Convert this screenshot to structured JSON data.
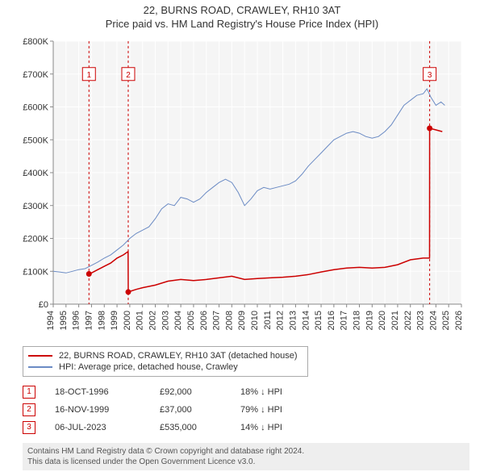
{
  "title": "22, BURNS ROAD, CRAWLEY, RH10 3AT",
  "subtitle": "Price paid vs. HM Land Registry's House Price Index (HPI)",
  "chart": {
    "type": "line",
    "plot_bg": "#f5f5f5",
    "grid_color": "#ffffff",
    "axis_color": "#888888",
    "tick_color": "#333333",
    "label_fontsize": 11,
    "x": {
      "min": 1994,
      "max": 2026,
      "ticks": [
        1994,
        1995,
        1996,
        1997,
        1998,
        1999,
        2000,
        2001,
        2002,
        2003,
        2004,
        2005,
        2006,
        2007,
        2008,
        2009,
        2010,
        2011,
        2012,
        2013,
        2014,
        2015,
        2016,
        2017,
        2018,
        2019,
        2020,
        2021,
        2022,
        2023,
        2024,
        2025,
        2026
      ]
    },
    "y": {
      "min": 0,
      "max": 800000,
      "tick_step": 100000,
      "labels": [
        "£0",
        "£100K",
        "£200K",
        "£300K",
        "£400K",
        "£500K",
        "£600K",
        "£700K",
        "£800K"
      ]
    },
    "series": [
      {
        "name": "property",
        "label": "22, BURNS ROAD, CRAWLEY, RH10 3AT (detached house)",
        "color": "#cc0000",
        "width": 1.5,
        "points": [
          [
            1996.8,
            92000
          ],
          [
            1996.85,
            92000
          ],
          [
            1997.0,
            95000
          ],
          [
            1997.5,
            105000
          ],
          [
            1998.0,
            115000
          ],
          [
            1998.5,
            125000
          ],
          [
            1999.0,
            140000
          ],
          [
            1999.5,
            150000
          ],
          [
            1999.87,
            160000
          ],
          [
            1999.88,
            37000
          ],
          [
            2000.5,
            45000
          ],
          [
            2001.0,
            50000
          ],
          [
            2002.0,
            58000
          ],
          [
            2003.0,
            70000
          ],
          [
            2004.0,
            75000
          ],
          [
            2005.0,
            72000
          ],
          [
            2006.0,
            75000
          ],
          [
            2007.0,
            80000
          ],
          [
            2008.0,
            85000
          ],
          [
            2009.0,
            75000
          ],
          [
            2010.0,
            78000
          ],
          [
            2011.0,
            80000
          ],
          [
            2012.0,
            82000
          ],
          [
            2013.0,
            85000
          ],
          [
            2014.0,
            90000
          ],
          [
            2015.0,
            98000
          ],
          [
            2016.0,
            105000
          ],
          [
            2017.0,
            110000
          ],
          [
            2018.0,
            112000
          ],
          [
            2019.0,
            110000
          ],
          [
            2020.0,
            112000
          ],
          [
            2021.0,
            120000
          ],
          [
            2022.0,
            135000
          ],
          [
            2023.0,
            140000
          ],
          [
            2023.5,
            140000
          ],
          [
            2023.51,
            535000
          ],
          [
            2023.52,
            535000
          ],
          [
            2024.0,
            530000
          ],
          [
            2024.5,
            525000
          ]
        ]
      },
      {
        "name": "hpi",
        "label": "HPI: Average price, detached house, Crawley",
        "color": "#6b8bc4",
        "width": 1,
        "points": [
          [
            1994.0,
            100000
          ],
          [
            1994.5,
            98000
          ],
          [
            1995.0,
            95000
          ],
          [
            1995.5,
            100000
          ],
          [
            1996.0,
            105000
          ],
          [
            1996.5,
            108000
          ],
          [
            1997.0,
            118000
          ],
          [
            1997.5,
            128000
          ],
          [
            1998.0,
            140000
          ],
          [
            1998.5,
            150000
          ],
          [
            1999.0,
            165000
          ],
          [
            1999.5,
            180000
          ],
          [
            2000.0,
            200000
          ],
          [
            2000.5,
            215000
          ],
          [
            2001.0,
            225000
          ],
          [
            2001.5,
            235000
          ],
          [
            2002.0,
            260000
          ],
          [
            2002.5,
            290000
          ],
          [
            2003.0,
            305000
          ],
          [
            2003.5,
            300000
          ],
          [
            2004.0,
            325000
          ],
          [
            2004.5,
            320000
          ],
          [
            2005.0,
            310000
          ],
          [
            2005.5,
            320000
          ],
          [
            2006.0,
            340000
          ],
          [
            2006.5,
            355000
          ],
          [
            2007.0,
            370000
          ],
          [
            2007.5,
            380000
          ],
          [
            2008.0,
            370000
          ],
          [
            2008.5,
            340000
          ],
          [
            2009.0,
            300000
          ],
          [
            2009.5,
            320000
          ],
          [
            2010.0,
            345000
          ],
          [
            2010.5,
            355000
          ],
          [
            2011.0,
            350000
          ],
          [
            2011.5,
            355000
          ],
          [
            2012.0,
            360000
          ],
          [
            2012.5,
            365000
          ],
          [
            2013.0,
            375000
          ],
          [
            2013.5,
            395000
          ],
          [
            2014.0,
            420000
          ],
          [
            2014.5,
            440000
          ],
          [
            2015.0,
            460000
          ],
          [
            2015.5,
            480000
          ],
          [
            2016.0,
            500000
          ],
          [
            2016.5,
            510000
          ],
          [
            2017.0,
            520000
          ],
          [
            2017.5,
            525000
          ],
          [
            2018.0,
            520000
          ],
          [
            2018.5,
            510000
          ],
          [
            2019.0,
            505000
          ],
          [
            2019.5,
            510000
          ],
          [
            2020.0,
            525000
          ],
          [
            2020.5,
            545000
          ],
          [
            2021.0,
            575000
          ],
          [
            2021.5,
            605000
          ],
          [
            2022.0,
            620000
          ],
          [
            2022.5,
            635000
          ],
          [
            2023.0,
            640000
          ],
          [
            2023.3,
            655000
          ],
          [
            2023.6,
            630000
          ],
          [
            2024.0,
            605000
          ],
          [
            2024.4,
            615000
          ],
          [
            2024.7,
            605000
          ]
        ]
      }
    ],
    "markers": [
      {
        "n": "1",
        "x": 1996.8,
        "y": 92000,
        "label_y": 700000
      },
      {
        "n": "2",
        "x": 1999.88,
        "y": 37000,
        "label_y": 700000
      },
      {
        "n": "3",
        "x": 2023.51,
        "y": 535000,
        "label_y": 700000
      }
    ],
    "marker_style": {
      "box_border": "#cc0000",
      "box_text": "#cc0000",
      "dash_color": "#cc0000",
      "dot_fill": "#cc0000"
    }
  },
  "legend": [
    {
      "color": "#cc0000",
      "label": "22, BURNS ROAD, CRAWLEY, RH10 3AT (detached house)"
    },
    {
      "color": "#6b8bc4",
      "label": "HPI: Average price, detached house, Crawley"
    }
  ],
  "sales": [
    {
      "n": "1",
      "date": "18-OCT-1996",
      "price": "£92,000",
      "diff": "18% ↓ HPI"
    },
    {
      "n": "2",
      "date": "16-NOV-1999",
      "price": "£37,000",
      "diff": "79% ↓ HPI"
    },
    {
      "n": "3",
      "date": "06-JUL-2023",
      "price": "£535,000",
      "diff": "14% ↓ HPI"
    }
  ],
  "footer": {
    "line1": "Contains HM Land Registry data © Crown copyright and database right 2024.",
    "line2": "This data is licensed under the Open Government Licence v3.0."
  }
}
